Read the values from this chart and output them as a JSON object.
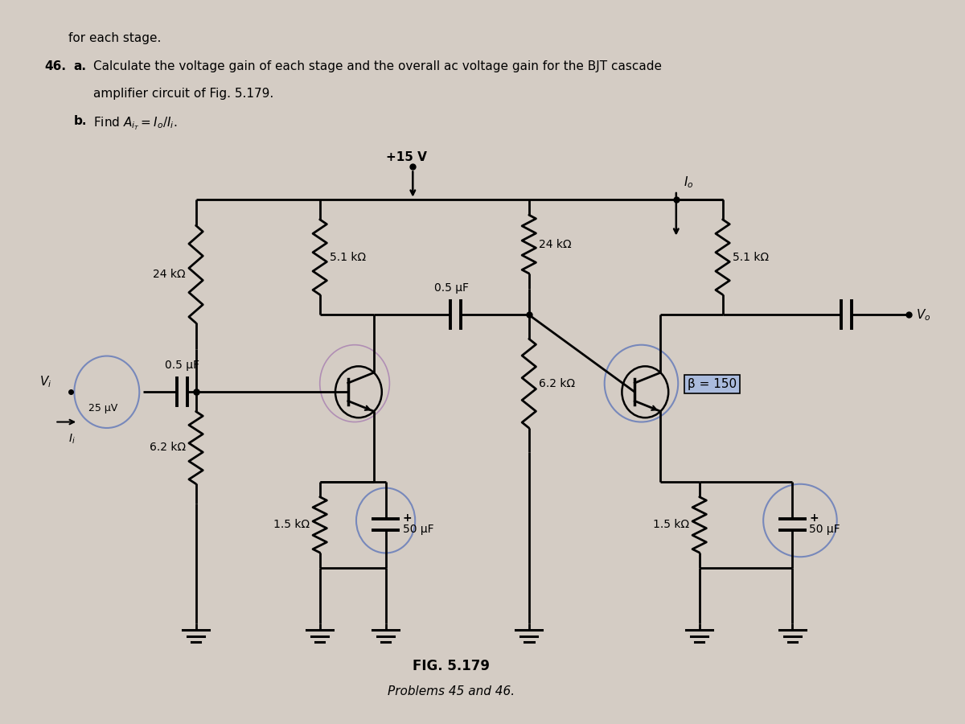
{
  "bg_color": "#d4ccc4",
  "line_color": "#000000",
  "title_text": "FIG. 5.179",
  "subtitle_text": "Problems 45 and 46.",
  "vcc_label": "+15 V",
  "r1_label": "5.1 kΩ",
  "r2_label": "24 kΩ",
  "r3_label": "5.1 kΩ",
  "r4_label": "24 kΩ",
  "r5_label": "6.2 kΩ",
  "r6_label": "6.2 kΩ",
  "r7_label": "1.5 kΩ",
  "r8_label": "1.5 kΩ",
  "c1_label": "0.5 μF",
  "c2_label": "0.5 μF",
  "c3_label": "50 μF",
  "c4_label": "50 μF",
  "beta_label": "β = 150",
  "vi_val": "25 μV"
}
